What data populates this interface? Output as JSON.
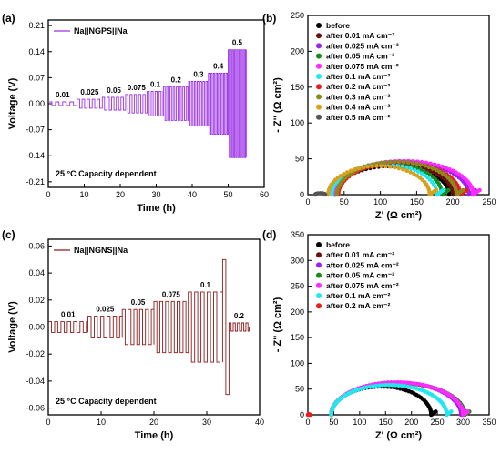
{
  "chart_data": [
    {
      "panel": "(a)",
      "type": "line",
      "xlabel": "Time (h)",
      "ylabel": "Voltage (V)",
      "xlim": [
        0,
        60
      ],
      "ylim": [
        -0.225,
        0.225
      ],
      "xticks": [
        "0",
        "10",
        "20",
        "30",
        "40",
        "50",
        "60"
      ],
      "yticks": [
        "0.21",
        "0.14",
        "0.07",
        "0.00",
        "-0.07",
        "-0.14",
        "-0.21"
      ],
      "ytick_values": [
        0.21,
        0.14,
        0.07,
        0,
        -0.07,
        -0.14,
        -0.21
      ],
      "series": [
        {
          "name": "Na||NGPS||Na",
          "color": "#9b30e6"
        }
      ],
      "stages": [
        {
          "label": "0.01",
          "t_start": 0,
          "t_end": 8,
          "amp": 0.005,
          "half": 1.0
        },
        {
          "label": "0.025",
          "t_start": 8,
          "t_end": 15,
          "amp": 0.012,
          "half": 0.7
        },
        {
          "label": "0.05",
          "t_start": 15,
          "t_end": 21.5,
          "amp": 0.017,
          "half": 0.65
        },
        {
          "label": "0.075",
          "t_start": 21.5,
          "t_end": 27.5,
          "amp": 0.025,
          "half": 0.6
        },
        {
          "label": "0.1",
          "t_start": 27.5,
          "t_end": 32,
          "amp": 0.033,
          "half": 0.55
        },
        {
          "label": "0.2",
          "t_start": 32,
          "t_end": 39,
          "amp": 0.045,
          "half": 0.45
        },
        {
          "label": "0.3",
          "t_start": 39,
          "t_end": 44.5,
          "amp": 0.06,
          "half": 0.4
        },
        {
          "label": "0.4",
          "t_start": 44.5,
          "t_end": 50,
          "amp": 0.082,
          "half": 0.35
        },
        {
          "label": "0.5",
          "t_start": 50,
          "t_end": 55,
          "amp": 0.145,
          "half": 0.3
        }
      ],
      "annotation": "25 °C  Capacity dependent"
    },
    {
      "panel": "(b)",
      "type": "scatter",
      "xlabel": "Z' (Ω cm²)",
      "ylabel": "- Z'' (Ω cm²)",
      "xlim": [
        0,
        250
      ],
      "ylim": [
        0,
        250
      ],
      "xticks": [
        "0",
        "50",
        "100",
        "150",
        "200",
        "250"
      ],
      "yticks": [
        "0",
        "50",
        "100",
        "150",
        "200",
        "250"
      ],
      "series": [
        {
          "name": "before",
          "color": "#000000",
          "r0": 37,
          "r1": 195,
          "hmax": 40
        },
        {
          "name": "after 0.01 mA cm⁻²",
          "color": "#6b0f0f",
          "r0": 37,
          "r1": 200,
          "hmax": 42
        },
        {
          "name": "after 0.025 mA cm⁻²",
          "color": "#a020f0",
          "r0": 37,
          "r1": 222,
          "hmax": 46
        },
        {
          "name": "after 0.05 mA cm⁻²",
          "color": "#1a8a1a",
          "r0": 37,
          "r1": 185,
          "hmax": 44
        },
        {
          "name": "after 0.075 mA cm⁻²",
          "color": "#ff2bff",
          "r0": 37,
          "r1": 228,
          "hmax": 47
        },
        {
          "name": "after 0.1 mA cm⁻²",
          "color": "#22e6f0",
          "r0": 33,
          "r1": 178,
          "hmax": 42
        },
        {
          "name": "after 0.2 mA cm⁻²",
          "color": "#e81d1d",
          "r0": 42,
          "r1": 210,
          "hmax": 45
        },
        {
          "name": "after 0.3 mA cm⁻²",
          "color": "#8a8a1a",
          "r0": 40,
          "r1": 205,
          "hmax": 46
        },
        {
          "name": "after 0.4 mA cm⁻²",
          "color": "#d8a01c",
          "r0": 28,
          "r1": 168,
          "hmax": 40
        },
        {
          "name": "after 0.5 mA cm⁻²",
          "color": "#555555",
          "r0": 10,
          "r1": 24,
          "hmax": 2
        }
      ]
    },
    {
      "panel": "(c)",
      "type": "line",
      "xlabel": "Time (h)",
      "ylabel": "Voltage (V)",
      "xlim": [
        0,
        40
      ],
      "ylim": [
        -0.065,
        0.065
      ],
      "xticks": [
        "0",
        "10",
        "20",
        "30",
        "40"
      ],
      "yticks": [
        "0.06",
        "0.04",
        "0.02",
        "0.00",
        "-0.02",
        "-0.04",
        "-0.06"
      ],
      "ytick_values": [
        0.06,
        0.04,
        0.02,
        0,
        -0.02,
        -0.04,
        -0.06
      ],
      "series": [
        {
          "name": "Na||NGNS||Na",
          "color": "#8b1a1a"
        }
      ],
      "stages": [
        {
          "label": "0.01",
          "t_start": 0,
          "t_end": 7.5,
          "amp": 0.004,
          "half": 0.6
        },
        {
          "label": "0.025",
          "t_start": 7.5,
          "t_end": 14,
          "amp": 0.008,
          "half": 0.6
        },
        {
          "label": "0.05",
          "t_start": 14,
          "t_end": 20,
          "amp": 0.013,
          "half": 0.55
        },
        {
          "label": "0.075",
          "t_start": 20,
          "t_end": 26.5,
          "amp": 0.019,
          "half": 0.55
        },
        {
          "label": "0.1",
          "t_start": 26.5,
          "t_end": 33,
          "amp": 0.026,
          "half": 0.6
        },
        {
          "label": "",
          "t_start": 33,
          "t_end": 34.2,
          "amp": 0.05,
          "half": 0.6
        },
        {
          "label": "0.2",
          "t_start": 34.2,
          "t_end": 38,
          "amp": 0.003,
          "half": 0.4
        }
      ],
      "annotation": "25 °C  Capacity dependent"
    },
    {
      "panel": "(d)",
      "type": "scatter",
      "xlabel": "Z' (Ω cm²)",
      "ylabel": "- Z'' (Ω cm²)",
      "xlim": [
        0,
        350
      ],
      "ylim": [
        0,
        350
      ],
      "xticks": [
        "0",
        "50",
        "100",
        "150",
        "200",
        "250",
        "300",
        "350"
      ],
      "yticks": [
        "0",
        "50",
        "100",
        "150",
        "200",
        "250",
        "300",
        "350"
      ],
      "series": [
        {
          "name": "before",
          "color": "#000000",
          "r0": 45,
          "r1": 238,
          "hmax": 55
        },
        {
          "name": "after 0.01 mA cm⁻²",
          "color": "#6b0f0f",
          "r0": 45,
          "r1": 300,
          "hmax": 62
        },
        {
          "name": "after 0.025 mA cm⁻²",
          "color": "#a020f0",
          "r0": 45,
          "r1": 296,
          "hmax": 63
        },
        {
          "name": "after 0.05 mA cm⁻²",
          "color": "#1a8a1a",
          "r0": 45,
          "r1": 303,
          "hmax": 62
        },
        {
          "name": "after 0.075 mA cm⁻²",
          "color": "#ff2bff",
          "r0": 45,
          "r1": 300,
          "hmax": 63
        },
        {
          "name": "after 0.1 mA cm⁻²",
          "color": "#22e6f0",
          "r0": 45,
          "r1": 268,
          "hmax": 58
        },
        {
          "name": "after 0.2 mA cm⁻²",
          "color": "#e81d1d",
          "r0": 0,
          "r1": 4,
          "hmax": 1
        }
      ]
    }
  ]
}
